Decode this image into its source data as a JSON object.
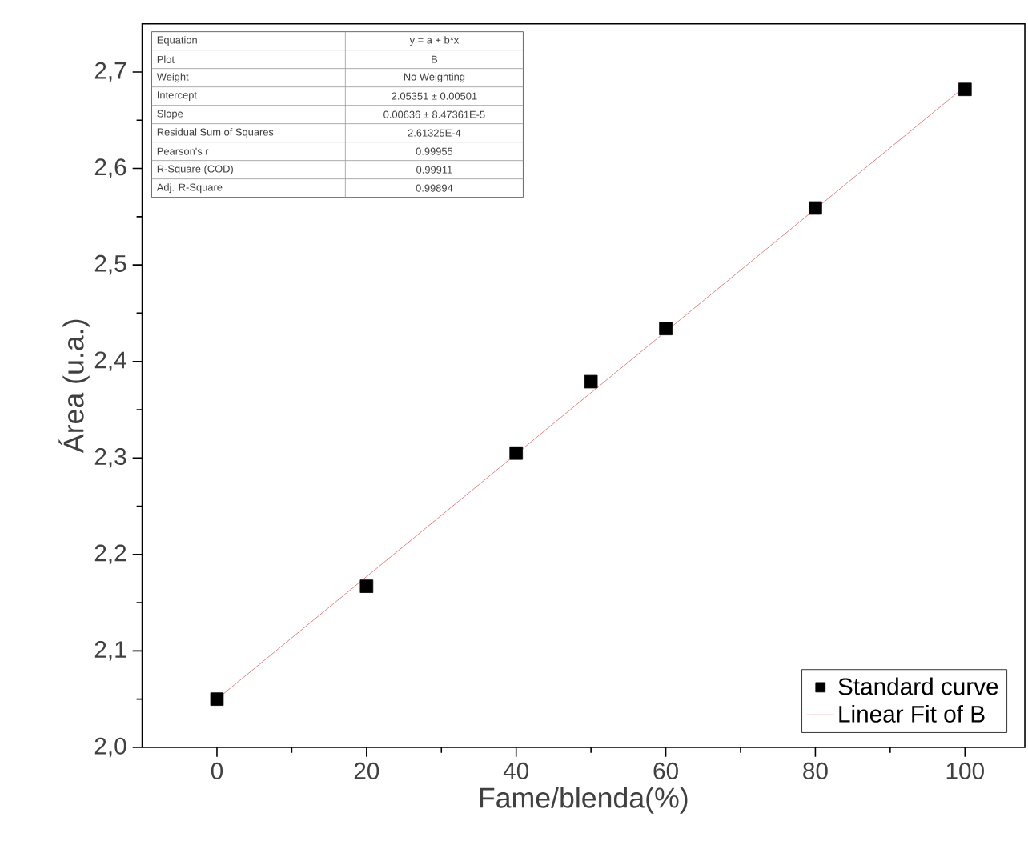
{
  "chart_data": {
    "type": "scatter",
    "xlabel": "Fame/blenda(%)",
    "ylabel": "Área (u.a.)",
    "xlim": [
      -10,
      108
    ],
    "ylim": [
      2.0,
      2.75
    ],
    "xticks": [
      0,
      20,
      40,
      60,
      80,
      100
    ],
    "yticks": [
      {
        "value": 2.0,
        "label": "2,0"
      },
      {
        "value": 2.1,
        "label": "2,1"
      },
      {
        "value": 2.2,
        "label": "2,2"
      },
      {
        "value": 2.3,
        "label": "2,3"
      },
      {
        "value": 2.4,
        "label": "2,4"
      },
      {
        "value": 2.5,
        "label": "2,5"
      },
      {
        "value": 2.6,
        "label": "2,6"
      },
      {
        "value": 2.7,
        "label": "2,7"
      }
    ],
    "series": [
      {
        "name": "Standard curve",
        "color": "#000000",
        "marker": "square",
        "x": [
          0,
          20,
          40,
          50,
          60,
          80,
          100
        ],
        "values": [
          2.05,
          2.167,
          2.305,
          2.379,
          2.434,
          2.559,
          2.682
        ]
      },
      {
        "name": "Linear Fit of B",
        "type": "line",
        "color": "#e06060",
        "marker": "none",
        "line_style": "solid",
        "x": [
          0,
          100
        ],
        "values": [
          2.05,
          2.685
        ]
      }
    ],
    "legend": "bottom right",
    "grid": false,
    "annotations": [
      "Equation",
      "y = a + b*x",
      "Plot",
      "B",
      "Weight",
      "No Weighting",
      "Intercept",
      "2.05351 ± 0.00501",
      "Slope",
      "0.00636 ± 8.47361E-5",
      "Residual Sum of Squares",
      "2.61325E-4",
      "Pearson's r",
      "0.99955",
      "R-Square (COD)",
      "0.99911",
      "Adj. R-Square",
      "0.99894"
    ]
  }
}
